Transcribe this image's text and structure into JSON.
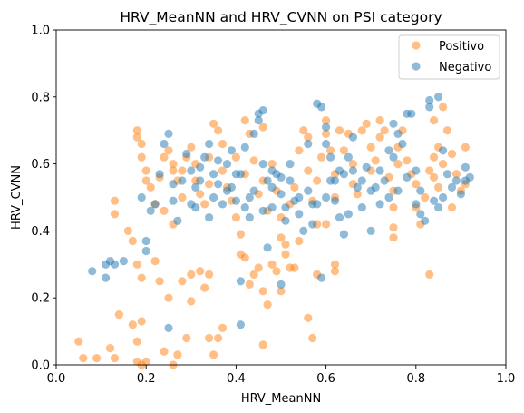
{
  "chart_data": {
    "type": "scatter",
    "title": "HRV_MeanNN and HRV_CVNN on PSI category",
    "xlabel": "HRV_MeanNN",
    "ylabel": "HRV_CVNN",
    "xlim": [
      0.0,
      1.0
    ],
    "ylim": [
      0.0,
      1.0
    ],
    "xticks": [
      "0.0",
      "0.2",
      "0.4",
      "0.6",
      "0.8",
      "1.0"
    ],
    "yticks": [
      "0.0",
      "0.2",
      "0.4",
      "0.6",
      "0.8",
      "1.0"
    ],
    "grid": false,
    "legend_position": "top-right",
    "series": [
      {
        "name": "Positivo",
        "color": "#ff7f0e",
        "points": [
          [
            0.05,
            0.07
          ],
          [
            0.06,
            0.02
          ],
          [
            0.09,
            0.02
          ],
          [
            0.12,
            0.05
          ],
          [
            0.13,
            0.02
          ],
          [
            0.14,
            0.15
          ],
          [
            0.17,
            0.12
          ],
          [
            0.18,
            0.07
          ],
          [
            0.18,
            0.01
          ],
          [
            0.19,
            0.0
          ],
          [
            0.19,
            0.13
          ],
          [
            0.2,
            0.01
          ],
          [
            0.22,
            0.31
          ],
          [
            0.23,
            0.25
          ],
          [
            0.24,
            0.04
          ],
          [
            0.25,
            0.2
          ],
          [
            0.26,
            0.0
          ],
          [
            0.27,
            0.03
          ],
          [
            0.28,
            0.25
          ],
          [
            0.29,
            0.08
          ],
          [
            0.3,
            0.27
          ],
          [
            0.3,
            0.19
          ],
          [
            0.32,
            0.28
          ],
          [
            0.33,
            0.23
          ],
          [
            0.34,
            0.27
          ],
          [
            0.34,
            0.08
          ],
          [
            0.35,
            0.03
          ],
          [
            0.36,
            0.08
          ],
          [
            0.37,
            0.11
          ],
          [
            0.26,
            0.42
          ],
          [
            0.24,
            0.46
          ],
          [
            0.13,
            0.49
          ],
          [
            0.13,
            0.45
          ],
          [
            0.16,
            0.4
          ],
          [
            0.17,
            0.37
          ],
          [
            0.18,
            0.3
          ],
          [
            0.19,
            0.26
          ],
          [
            0.41,
            0.33
          ],
          [
            0.42,
            0.32
          ],
          [
            0.43,
            0.24
          ],
          [
            0.44,
            0.27
          ],
          [
            0.45,
            0.29
          ],
          [
            0.46,
            0.22
          ],
          [
            0.46,
            0.06
          ],
          [
            0.47,
            0.18
          ],
          [
            0.48,
            0.3
          ],
          [
            0.49,
            0.28
          ],
          [
            0.5,
            0.22
          ],
          [
            0.51,
            0.33
          ],
          [
            0.52,
            0.29
          ],
          [
            0.53,
            0.29
          ],
          [
            0.54,
            0.37
          ],
          [
            0.56,
            0.14
          ],
          [
            0.57,
            0.08
          ],
          [
            0.58,
            0.27
          ],
          [
            0.58,
            0.42
          ],
          [
            0.6,
            0.42
          ],
          [
            0.62,
            0.28
          ],
          [
            0.62,
            0.3
          ],
          [
            0.18,
            0.7
          ],
          [
            0.18,
            0.68
          ],
          [
            0.19,
            0.66
          ],
          [
            0.19,
            0.62
          ],
          [
            0.2,
            0.58
          ],
          [
            0.2,
            0.55
          ],
          [
            0.21,
            0.53
          ],
          [
            0.22,
            0.48
          ],
          [
            0.23,
            0.56
          ],
          [
            0.24,
            0.62
          ],
          [
            0.25,
            0.64
          ],
          [
            0.26,
            0.6
          ],
          [
            0.26,
            0.58
          ],
          [
            0.27,
            0.55
          ],
          [
            0.28,
            0.5
          ],
          [
            0.28,
            0.58
          ],
          [
            0.29,
            0.62
          ],
          [
            0.3,
            0.65
          ],
          [
            0.31,
            0.6
          ],
          [
            0.31,
            0.55
          ],
          [
            0.32,
            0.51
          ],
          [
            0.33,
            0.48
          ],
          [
            0.34,
            0.54
          ],
          [
            0.34,
            0.62
          ],
          [
            0.35,
            0.72
          ],
          [
            0.36,
            0.7
          ],
          [
            0.37,
            0.66
          ],
          [
            0.37,
            0.58
          ],
          [
            0.38,
            0.53
          ],
          [
            0.39,
            0.49
          ],
          [
            0.4,
            0.62
          ],
          [
            0.4,
            0.44
          ],
          [
            0.41,
            0.39
          ],
          [
            0.42,
            0.57
          ],
          [
            0.42,
            0.73
          ],
          [
            0.43,
            0.69
          ],
          [
            0.44,
            0.61
          ],
          [
            0.45,
            0.51
          ],
          [
            0.46,
            0.71
          ],
          [
            0.46,
            0.55
          ],
          [
            0.47,
            0.46
          ],
          [
            0.48,
            0.6
          ],
          [
            0.49,
            0.52
          ],
          [
            0.5,
            0.44
          ],
          [
            0.5,
            0.38
          ],
          [
            0.51,
            0.36
          ],
          [
            0.52,
            0.48
          ],
          [
            0.53,
            0.53
          ],
          [
            0.54,
            0.64
          ],
          [
            0.55,
            0.7
          ],
          [
            0.56,
            0.68
          ],
          [
            0.56,
            0.58
          ],
          [
            0.57,
            0.49
          ],
          [
            0.58,
            0.55
          ],
          [
            0.59,
            0.62
          ],
          [
            0.6,
            0.69
          ],
          [
            0.6,
            0.73
          ],
          [
            0.61,
            0.64
          ],
          [
            0.62,
            0.57
          ],
          [
            0.62,
            0.5
          ],
          [
            0.63,
            0.7
          ],
          [
            0.64,
            0.64
          ],
          [
            0.65,
            0.69
          ],
          [
            0.66,
            0.6
          ],
          [
            0.66,
            0.54
          ],
          [
            0.67,
            0.51
          ],
          [
            0.68,
            0.7
          ],
          [
            0.69,
            0.72
          ],
          [
            0.7,
            0.65
          ],
          [
            0.7,
            0.58
          ],
          [
            0.71,
            0.61
          ],
          [
            0.72,
            0.68
          ],
          [
            0.72,
            0.73
          ],
          [
            0.73,
            0.7
          ],
          [
            0.74,
            0.56
          ],
          [
            0.75,
            0.52
          ],
          [
            0.75,
            0.47
          ],
          [
            0.75,
            0.41
          ],
          [
            0.75,
            0.38
          ],
          [
            0.76,
            0.65
          ],
          [
            0.76,
            0.6
          ],
          [
            0.77,
            0.7
          ],
          [
            0.78,
            0.61
          ],
          [
            0.79,
            0.57
          ],
          [
            0.8,
            0.54
          ],
          [
            0.8,
            0.47
          ],
          [
            0.81,
            0.42
          ],
          [
            0.82,
            0.5
          ],
          [
            0.83,
            0.27
          ],
          [
            0.83,
            0.58
          ],
          [
            0.84,
            0.62
          ],
          [
            0.84,
            0.56
          ],
          [
            0.85,
            0.65
          ],
          [
            0.85,
            0.53
          ],
          [
            0.86,
            0.6
          ],
          [
            0.87,
            0.7
          ],
          [
            0.88,
            0.63
          ],
          [
            0.88,
            0.47
          ],
          [
            0.89,
            0.57
          ],
          [
            0.9,
            0.52
          ],
          [
            0.91,
            0.65
          ],
          [
            0.91,
            0.54
          ],
          [
            0.86,
            0.77
          ],
          [
            0.84,
            0.73
          ]
        ]
      },
      {
        "name": "Negativo",
        "color": "#1f77b4",
        "points": [
          [
            0.08,
            0.28
          ],
          [
            0.11,
            0.26
          ],
          [
            0.11,
            0.3
          ],
          [
            0.12,
            0.31
          ],
          [
            0.13,
            0.3
          ],
          [
            0.15,
            0.31
          ],
          [
            0.25,
            0.11
          ],
          [
            0.41,
            0.12
          ],
          [
            0.41,
            0.25
          ],
          [
            0.47,
            0.35
          ],
          [
            0.5,
            0.24
          ],
          [
            0.59,
            0.26
          ],
          [
            0.19,
            0.5
          ],
          [
            0.2,
            0.37
          ],
          [
            0.2,
            0.34
          ],
          [
            0.21,
            0.46
          ],
          [
            0.22,
            0.48
          ],
          [
            0.23,
            0.57
          ],
          [
            0.24,
            0.66
          ],
          [
            0.25,
            0.69
          ],
          [
            0.26,
            0.54
          ],
          [
            0.26,
            0.49
          ],
          [
            0.27,
            0.43
          ],
          [
            0.28,
            0.55
          ],
          [
            0.29,
            0.63
          ],
          [
            0.3,
            0.58
          ],
          [
            0.31,
            0.53
          ],
          [
            0.31,
            0.47
          ],
          [
            0.32,
            0.59
          ],
          [
            0.33,
            0.62
          ],
          [
            0.34,
            0.66
          ],
          [
            0.35,
            0.57
          ],
          [
            0.35,
            0.5
          ],
          [
            0.36,
            0.54
          ],
          [
            0.37,
            0.48
          ],
          [
            0.38,
            0.6
          ],
          [
            0.39,
            0.64
          ],
          [
            0.39,
            0.53
          ],
          [
            0.4,
            0.49
          ],
          [
            0.41,
            0.57
          ],
          [
            0.42,
            0.65
          ],
          [
            0.43,
            0.5
          ],
          [
            0.43,
            0.44
          ],
          [
            0.44,
            0.69
          ],
          [
            0.45,
            0.75
          ],
          [
            0.45,
            0.73
          ],
          [
            0.46,
            0.76
          ],
          [
            0.46,
            0.6
          ],
          [
            0.47,
            0.55
          ],
          [
            0.48,
            0.53
          ],
          [
            0.48,
            0.47
          ],
          [
            0.49,
            0.57
          ],
          [
            0.5,
            0.51
          ],
          [
            0.51,
            0.47
          ],
          [
            0.51,
            0.43
          ],
          [
            0.52,
            0.55
          ],
          [
            0.53,
            0.49
          ],
          [
            0.54,
            0.45
          ],
          [
            0.55,
            0.4
          ],
          [
            0.56,
            0.66
          ],
          [
            0.57,
            0.48
          ],
          [
            0.57,
            0.42
          ],
          [
            0.58,
            0.78
          ],
          [
            0.59,
            0.77
          ],
          [
            0.6,
            0.71
          ],
          [
            0.6,
            0.66
          ],
          [
            0.61,
            0.62
          ],
          [
            0.61,
            0.55
          ],
          [
            0.62,
            0.49
          ],
          [
            0.63,
            0.44
          ],
          [
            0.64,
            0.39
          ],
          [
            0.64,
            0.57
          ],
          [
            0.65,
            0.62
          ],
          [
            0.66,
            0.68
          ],
          [
            0.67,
            0.53
          ],
          [
            0.68,
            0.47
          ],
          [
            0.69,
            0.59
          ],
          [
            0.7,
            0.4
          ],
          [
            0.71,
            0.53
          ],
          [
            0.72,
            0.58
          ],
          [
            0.73,
            0.55
          ],
          [
            0.74,
            0.5
          ],
          [
            0.75,
            0.62
          ],
          [
            0.75,
            0.72
          ],
          [
            0.76,
            0.69
          ],
          [
            0.77,
            0.66
          ],
          [
            0.78,
            0.75
          ],
          [
            0.79,
            0.75
          ],
          [
            0.8,
            0.58
          ],
          [
            0.81,
            0.52
          ],
          [
            0.81,
            0.45
          ],
          [
            0.82,
            0.43
          ],
          [
            0.83,
            0.79
          ],
          [
            0.83,
            0.77
          ],
          [
            0.84,
            0.49
          ],
          [
            0.85,
            0.47
          ],
          [
            0.85,
            0.8
          ],
          [
            0.86,
            0.64
          ],
          [
            0.86,
            0.5
          ],
          [
            0.87,
            0.57
          ],
          [
            0.88,
            0.53
          ],
          [
            0.89,
            0.55
          ],
          [
            0.9,
            0.51
          ],
          [
            0.91,
            0.59
          ],
          [
            0.91,
            0.55
          ],
          [
            0.92,
            0.56
          ],
          [
            0.3,
            0.48
          ],
          [
            0.32,
            0.55
          ],
          [
            0.34,
            0.44
          ],
          [
            0.36,
            0.61
          ],
          [
            0.38,
            0.52
          ],
          [
            0.4,
            0.57
          ],
          [
            0.42,
            0.47
          ],
          [
            0.44,
            0.52
          ],
          [
            0.46,
            0.46
          ],
          [
            0.48,
            0.58
          ],
          [
            0.5,
            0.56
          ],
          [
            0.52,
            0.6
          ],
          [
            0.54,
            0.5
          ],
          [
            0.56,
            0.52
          ],
          [
            0.58,
            0.48
          ],
          [
            0.6,
            0.5
          ],
          [
            0.62,
            0.55
          ],
          [
            0.63,
            0.58
          ],
          [
            0.65,
            0.45
          ],
          [
            0.66,
            0.58
          ],
          [
            0.68,
            0.55
          ],
          [
            0.7,
            0.52
          ],
          [
            0.72,
            0.48
          ],
          [
            0.74,
            0.64
          ],
          [
            0.76,
            0.52
          ],
          [
            0.78,
            0.56
          ],
          [
            0.8,
            0.48
          ]
        ]
      }
    ]
  }
}
